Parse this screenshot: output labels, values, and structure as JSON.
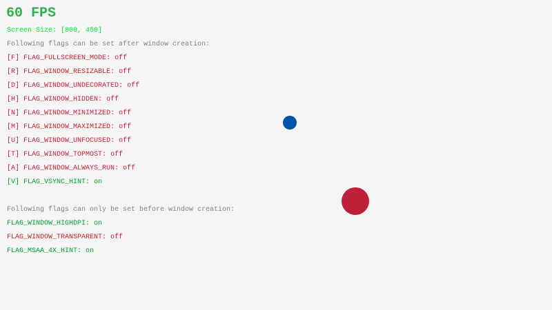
{
  "fps": {
    "text": "60 FPS",
    "color": "#30b050"
  },
  "screen_size": {
    "text": "Screen Size: [800, 450]",
    "color": "#00e430"
  },
  "after_header": "Following flags can be set after window creation:",
  "after_flags": [
    {
      "key": "[F]",
      "name": "FLAG_FULLSCREEN_MODE",
      "state": "off"
    },
    {
      "key": "[R]",
      "name": "FLAG_WINDOW_RESIZABLE",
      "state": "off"
    },
    {
      "key": "[D]",
      "name": "FLAG_WINDOW_UNDECORATED",
      "state": "off"
    },
    {
      "key": "[H]",
      "name": "FLAG_WINDOW_HIDDEN",
      "state": "off"
    },
    {
      "key": "[N]",
      "name": "FLAG_WINDOW_MINIMIZED",
      "state": "off"
    },
    {
      "key": "[M]",
      "name": "FLAG_WINDOW_MAXIMIZED",
      "state": "off"
    },
    {
      "key": "[U]",
      "name": "FLAG_WINDOW_UNFOCUSED",
      "state": "off"
    },
    {
      "key": "[T]",
      "name": "FLAG_WINDOW_TOPMOST",
      "state": "off"
    },
    {
      "key": "[A]",
      "name": "FLAG_WINDOW_ALWAYS_RUN",
      "state": "off"
    },
    {
      "key": "[V]",
      "name": "FLAG_VSYNC_HINT",
      "state": "on"
    }
  ],
  "before_header": "Following flags can only be set before window creation:",
  "before_flags": [
    {
      "name": "FLAG_WINDOW_HIGHDPI",
      "state": "on"
    },
    {
      "name": "FLAG_WINDOW_TRANSPARENT",
      "state": "off"
    },
    {
      "name": "FLAG_MSAA_4X_HINT",
      "state": "on"
    }
  ],
  "colors": {
    "on": "#009e2f",
    "off": "#be2137",
    "header": "#828282",
    "background": "#f5f5f5",
    "ball_blue": "#0052ac",
    "ball_red": "#be2137"
  }
}
